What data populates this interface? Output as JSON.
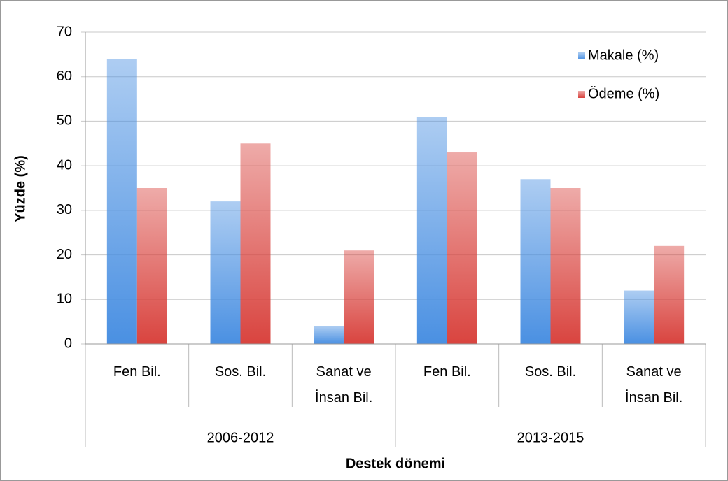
{
  "chart_data": {
    "type": "bar",
    "groups": [
      {
        "label": "2006-2012",
        "categories": [
          "Fen Bil.",
          "Sos. Bil.",
          "Sanat ve İnsan Bil."
        ]
      },
      {
        "label": "2013-2015",
        "categories": [
          "Fen Bil.",
          "Sos. Bil.",
          "Sanat ve İnsan Bil."
        ]
      }
    ],
    "series": [
      {
        "name": "Makale (%)",
        "color": "#4a90e2",
        "values": [
          64,
          32,
          4,
          51,
          37,
          12
        ]
      },
      {
        "name": "Ödeme (%)",
        "color": "#d9443f",
        "values": [
          35,
          45,
          21,
          43,
          35,
          22
        ]
      }
    ],
    "y_label": "Yüzde (%)",
    "x_label": "Destek dönemi",
    "ylim": [
      0,
      70
    ],
    "yticks": [
      0,
      10,
      20,
      30,
      40,
      50,
      60,
      70
    ],
    "grid": true,
    "legend": "upper right"
  }
}
